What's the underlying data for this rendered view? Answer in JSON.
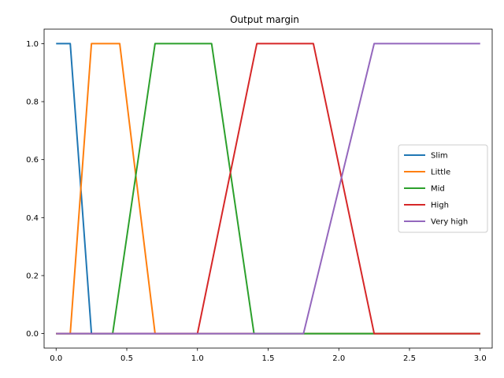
{
  "chart_data": {
    "type": "line",
    "title": "Output margin",
    "xlabel": "",
    "ylabel": "",
    "xlim": [
      -0.085,
      3.085
    ],
    "ylim": [
      -0.05,
      1.05
    ],
    "xticks": [
      0.0,
      0.5,
      1.0,
      1.5,
      2.0,
      2.5,
      3.0
    ],
    "xtick_labels": [
      "0.0",
      "0.5",
      "1.0",
      "1.5",
      "2.0",
      "2.5",
      "3.0"
    ],
    "yticks": [
      0.0,
      0.2,
      0.4,
      0.6,
      0.8,
      1.0
    ],
    "ytick_labels": [
      "0.0",
      "0.2",
      "0.4",
      "0.6",
      "0.8",
      "1.0"
    ],
    "grid": false,
    "legend_position": "center-right",
    "series": [
      {
        "name": "Slim",
        "color": "#1f77b4",
        "x": [
          0,
          0.1,
          0.25,
          3.0
        ],
        "y": [
          1,
          1,
          0,
          0
        ]
      },
      {
        "name": "Little",
        "color": "#ff7f0e",
        "x": [
          0,
          0.1,
          0.25,
          0.45,
          0.7,
          3.0
        ],
        "y": [
          0,
          0,
          1,
          1,
          0,
          0
        ]
      },
      {
        "name": "Mid",
        "color": "#2ca02c",
        "x": [
          0,
          0.4,
          0.7,
          1.1,
          1.4,
          3.0
        ],
        "y": [
          0,
          0,
          1,
          1,
          0,
          0
        ]
      },
      {
        "name": "High",
        "color": "#d62728",
        "x": [
          0,
          1.0,
          1.42,
          1.82,
          2.25,
          3.0
        ],
        "y": [
          0,
          0,
          1,
          1,
          0,
          0
        ]
      },
      {
        "name": "Very high",
        "color": "#9467bd",
        "x": [
          0,
          1.75,
          2.25,
          3.0
        ],
        "y": [
          0,
          0,
          1,
          1
        ]
      }
    ]
  }
}
